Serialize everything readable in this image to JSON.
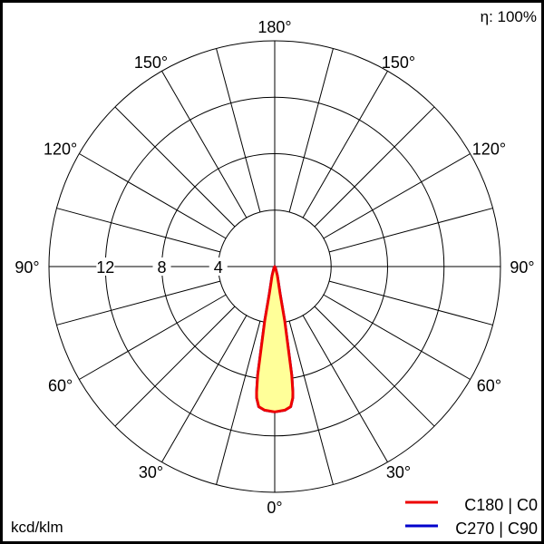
{
  "chart_data": {
    "type": "polar",
    "unit_label": "kcd/klm",
    "efficiency_label": "η: 100%",
    "radial_ticks": [
      4,
      8,
      12,
      16
    ],
    "radial_tick_labels": [
      "4",
      "8",
      "12"
    ],
    "rmax": 16,
    "angle_step_deg": 15,
    "angle_labels": [
      {
        "text": "180°",
        "angle": 180,
        "side": "center"
      },
      {
        "text": "150°",
        "angle": 150,
        "side": "left"
      },
      {
        "text": "150°",
        "angle": 150,
        "side": "right"
      },
      {
        "text": "120°",
        "angle": 120,
        "side": "left"
      },
      {
        "text": "120°",
        "angle": 120,
        "side": "right"
      },
      {
        "text": "90°",
        "angle": 90,
        "side": "left"
      },
      {
        "text": "90°",
        "angle": 90,
        "side": "right"
      },
      {
        "text": "60°",
        "angle": 60,
        "side": "left"
      },
      {
        "text": "60°",
        "angle": 60,
        "side": "right"
      },
      {
        "text": "30°",
        "angle": 30,
        "side": "left"
      },
      {
        "text": "30°",
        "angle": 30,
        "side": "right"
      },
      {
        "text": "0°",
        "angle": 0,
        "side": "center"
      }
    ],
    "fill_color": "#ffff99",
    "series": [
      {
        "name": "C270 | C90",
        "color": "#0000cc",
        "angles": [
          0,
          4,
          6.5,
          7.8,
          8.2,
          8.9,
          10.4,
          11.3,
          16,
          30,
          90
        ],
        "values": [
          10.3,
          10.2,
          10.0,
          9.4,
          9.0,
          7.8,
          3.9,
          1.95,
          0.67,
          0.1,
          0
        ]
      },
      {
        "name": "C180 | C0",
        "color": "#ee0000",
        "angles": [
          0,
          4,
          6.5,
          7.8,
          8.2,
          8.9,
          10.4,
          11.3,
          16,
          30,
          90
        ],
        "values": [
          10.3,
          10.2,
          10.0,
          9.4,
          9.0,
          7.8,
          3.9,
          1.95,
          0.67,
          0.1,
          0
        ]
      }
    ]
  }
}
